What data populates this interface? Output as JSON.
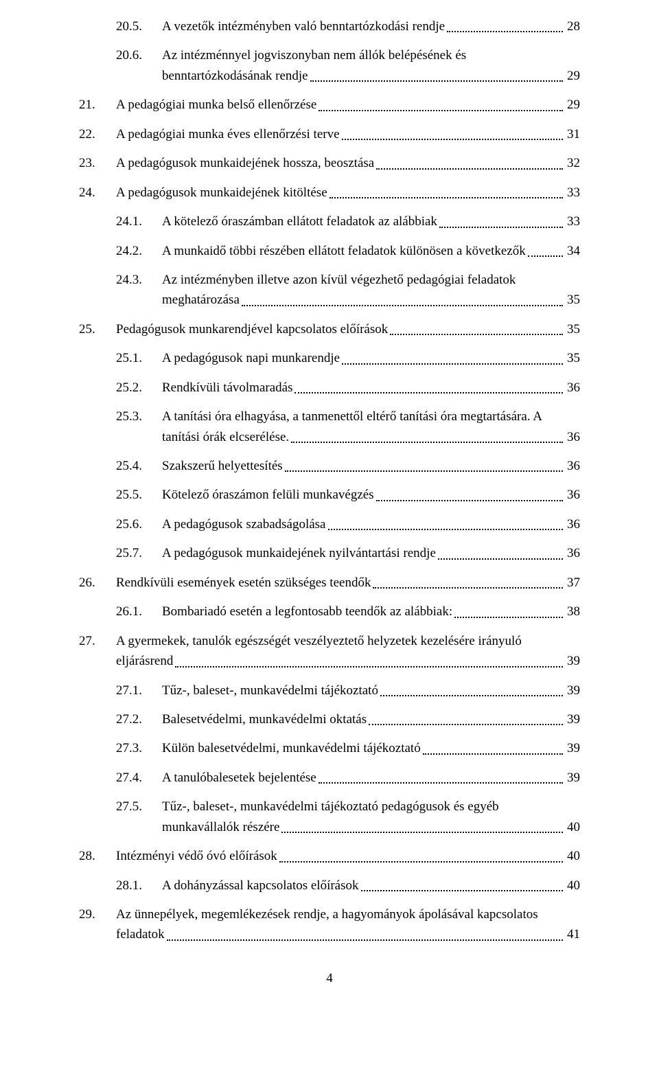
{
  "entries": [
    {
      "num": "20.5.",
      "title": "A vezetők intézményben való benntartózkodási rendje",
      "page": "28",
      "level": 2,
      "multiline": false
    },
    {
      "num": "20.6.",
      "title": "Az intézménnyel jogviszonyban nem állók belépésének és benntartózkodásának rendje",
      "page": "29",
      "level": 2,
      "multiline": true,
      "line1": "Az intézménnyel jogviszonyban nem állók belépésének és",
      "line2": "benntartózkodásának rendje"
    },
    {
      "num": "21.",
      "title": "A pedagógiai munka belső ellenőrzése",
      "page": "29",
      "level": 1,
      "multiline": false
    },
    {
      "num": "22.",
      "title": "A pedagógiai munka éves ellenőrzési terve",
      "page": "31",
      "level": 1,
      "multiline": false
    },
    {
      "num": "23.",
      "title": "A pedagógusok munkaidejének hossza, beosztása",
      "page": "32",
      "level": 1,
      "multiline": false
    },
    {
      "num": "24.",
      "title": "A pedagógusok munkaidejének kitöltése",
      "page": "33",
      "level": 1,
      "multiline": false
    },
    {
      "num": "24.1.",
      "title": "A kötelező óraszámban ellátott feladatok az alábbiak",
      "page": "33",
      "level": 2,
      "multiline": false
    },
    {
      "num": "24.2.",
      "title": "A munkaidő többi részében ellátott feladatok különösen a következők",
      "page": "34",
      "level": 2,
      "multiline": false
    },
    {
      "num": "24.3.",
      "title": "Az intézményben illetve azon kívül végezhető pedagógiai feladatok meghatározása",
      "page": "35",
      "level": 2,
      "multiline": true,
      "line1": "Az intézményben illetve azon kívül végezhető pedagógiai feladatok",
      "line2": "meghatározása"
    },
    {
      "num": "25.",
      "title": "Pedagógusok munkarendjével kapcsolatos előírások",
      "page": "35",
      "level": 1,
      "multiline": false
    },
    {
      "num": "25.1.",
      "title": "A pedagógusok napi munkarendje",
      "page": "35",
      "level": 2,
      "multiline": false
    },
    {
      "num": "25.2.",
      "title": "Rendkívüli távolmaradás",
      "page": "36",
      "level": 2,
      "multiline": false
    },
    {
      "num": "25.3.",
      "title": "A tanítási óra elhagyása, a tanmenettől eltérő tanítási óra megtartására. A tanítási órák elcserélése.",
      "page": "36",
      "level": 2,
      "multiline": true,
      "line1": "A tanítási óra elhagyása, a tanmenettől eltérő tanítási óra megtartására. A",
      "line2": "tanítási órák elcserélése."
    },
    {
      "num": "25.4.",
      "title": "Szakszerű helyettesítés",
      "page": "36",
      "level": 2,
      "multiline": false
    },
    {
      "num": "25.5.",
      "title": "Kötelező óraszámon felüli munkavégzés",
      "page": "36",
      "level": 2,
      "multiline": false
    },
    {
      "num": "25.6.",
      "title": "A pedagógusok szabadságolása",
      "page": "36",
      "level": 2,
      "multiline": false
    },
    {
      "num": "25.7.",
      "title": "A pedagógusok munkaidejének nyilvántartási rendje",
      "page": "36",
      "level": 2,
      "multiline": false
    },
    {
      "num": "26.",
      "title": "Rendkívüli események esetén szükséges teendők",
      "page": "37",
      "level": 1,
      "multiline": false
    },
    {
      "num": "26.1.",
      "title": "Bombariadó esetén a legfontosabb teendők az alábbiak:",
      "page": "38",
      "level": 2,
      "multiline": false
    },
    {
      "num": "27.",
      "title": "A gyermekek, tanulók egészségét veszélyeztető helyzetek kezelésére irányuló eljárásrend",
      "page": "39",
      "level": 1,
      "multiline": true,
      "line1": "A gyermekek, tanulók egészségét veszélyeztető helyzetek kezelésére irányuló",
      "line2": "eljárásrend"
    },
    {
      "num": "27.1.",
      "title": "Tűz-, baleset-, munkavédelmi tájékoztató",
      "page": "39",
      "level": 2,
      "multiline": false
    },
    {
      "num": "27.2.",
      "title": "Balesetvédelmi, munkavédelmi oktatás",
      "page": "39",
      "level": 2,
      "multiline": false
    },
    {
      "num": "27.3.",
      "title": "Külön balesetvédelmi, munkavédelmi tájékoztató",
      "page": "39",
      "level": 2,
      "multiline": false
    },
    {
      "num": "27.4.",
      "title": "A tanulóbalesetek bejelentése",
      "page": "39",
      "level": 2,
      "multiline": false
    },
    {
      "num": "27.5.",
      "title": "Tűz-, baleset-, munkavédelmi tájékoztató pedagógusok és egyéb munkavállalók részére",
      "page": "40",
      "level": 2,
      "multiline": true,
      "line1": "Tűz-, baleset-, munkavédelmi tájékoztató pedagógusok és egyéb",
      "line2": "munkavállalók részére"
    },
    {
      "num": "28.",
      "title": "Intézményi védő óvó előírások",
      "page": "40",
      "level": 1,
      "multiline": false
    },
    {
      "num": "28.1.",
      "title": "A dohányzással kapcsolatos előírások",
      "page": "40",
      "level": 2,
      "multiline": false
    },
    {
      "num": "29.",
      "title": "Az ünnepélyek, megemlékezések rendje, a hagyományok ápolásával kapcsolatos feladatok",
      "page": "41",
      "level": 1,
      "multiline": true,
      "line1": "Az ünnepélyek, megemlékezések rendje, a hagyományok ápolásával kapcsolatos",
      "line2": "feladatok"
    }
  ],
  "pageNumber": "4"
}
